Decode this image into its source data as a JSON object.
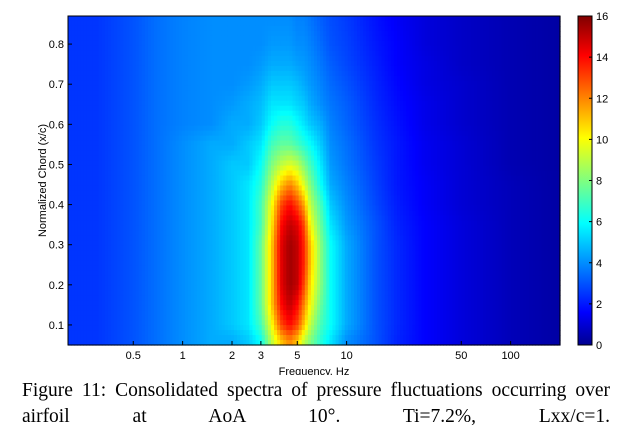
{
  "chart_data": {
    "type": "heatmap",
    "title": "",
    "xlabel": "Frequency, Hz",
    "ylabel": "Normalized Chord (x/c)",
    "x_scale": "log",
    "xlim": [
      0.2,
      200
    ],
    "ylim": [
      0.05,
      0.87
    ],
    "x_ticks": [
      {
        "value": 0.5,
        "label": "0.5"
      },
      {
        "value": 1,
        "label": "1"
      },
      {
        "value": 2,
        "label": "2"
      },
      {
        "value": 3,
        "label": "3"
      },
      {
        "value": 5,
        "label": "5"
      },
      {
        "value": 10,
        "label": "10"
      },
      {
        "value": 50,
        "label": "50"
      },
      {
        "value": 100,
        "label": "100"
      }
    ],
    "y_ticks": [
      {
        "value": 0.1,
        "label": "0.1"
      },
      {
        "value": 0.2,
        "label": "0.2"
      },
      {
        "value": 0.3,
        "label": "0.3"
      },
      {
        "value": 0.4,
        "label": "0.4"
      },
      {
        "value": 0.5,
        "label": "0.5"
      },
      {
        "value": 0.6,
        "label": "0.6"
      },
      {
        "value": 0.7,
        "label": "0.7"
      },
      {
        "value": 0.8,
        "label": "0.8"
      }
    ],
    "colorbar": {
      "range": [
        0,
        16
      ],
      "ticks": [
        {
          "value": 0,
          "label": "0"
        },
        {
          "value": 2,
          "label": "2"
        },
        {
          "value": 4,
          "label": "4"
        },
        {
          "value": 6,
          "label": "6"
        },
        {
          "value": 8,
          "label": "8"
        },
        {
          "value": 10,
          "label": "10"
        },
        {
          "value": 12,
          "label": "12"
        },
        {
          "value": 14,
          "label": "14"
        },
        {
          "value": 16,
          "label": "16"
        }
      ],
      "colors": [
        "#00008f",
        "#0000ff",
        "#00ffff",
        "#ffff00",
        "#ff0000",
        "#800000"
      ]
    },
    "x_bins": [
      0.2,
      0.3,
      0.5,
      0.7,
      1,
      1.5,
      2,
      2.5,
      3,
      3.5,
      4,
      4.5,
      5,
      5.5,
      6,
      7,
      8,
      10,
      15,
      20,
      30,
      50,
      100,
      200
    ],
    "y_bins": [
      0.06,
      0.1,
      0.15,
      0.2,
      0.25,
      0.3,
      0.35,
      0.4,
      0.45,
      0.5,
      0.55,
      0.6,
      0.65,
      0.7,
      0.75,
      0.8,
      0.86
    ],
    "z": [
      [
        2.5,
        2.5,
        3,
        3.5,
        4,
        4.5,
        4.5,
        5,
        6,
        9,
        11,
        12,
        11,
        9,
        8,
        6.5,
        5.5,
        4,
        3,
        2.2,
        1.6,
        1.1,
        0.6,
        0.3
      ],
      [
        2.5,
        2.5,
        3,
        3.5,
        4,
        4.5,
        5,
        5.5,
        7,
        10,
        13,
        14,
        13,
        11,
        9,
        7,
        6,
        4.5,
        3,
        2.3,
        1.6,
        1.1,
        0.6,
        0.3
      ],
      [
        2.5,
        2.5,
        3,
        3.5,
        4,
        4.5,
        5,
        5.5,
        7.5,
        11,
        14,
        15,
        14,
        12,
        10,
        7.5,
        6,
        4.5,
        3,
        2.3,
        1.6,
        1.1,
        0.6,
        0.3
      ],
      [
        2.5,
        2.5,
        3,
        3.5,
        4,
        4.5,
        5,
        5.5,
        7.5,
        11,
        14.5,
        15.5,
        15,
        13,
        10.5,
        8,
        6,
        4.5,
        3,
        2.3,
        1.6,
        1.1,
        0.6,
        0.3
      ],
      [
        2.5,
        2.5,
        3,
        3.5,
        4,
        4.5,
        5,
        5.5,
        7.5,
        11,
        14.5,
        15.5,
        15,
        13.5,
        11,
        8,
        6,
        4.5,
        3,
        2.3,
        1.6,
        1.1,
        0.6,
        0.3
      ],
      [
        2.5,
        2.5,
        3,
        3.5,
        4,
        4.5,
        5,
        5.5,
        7.5,
        11,
        14.5,
        15.5,
        15,
        13.5,
        11,
        8,
        6,
        4.5,
        3,
        2.3,
        1.6,
        1.1,
        0.6,
        0.3
      ],
      [
        2.5,
        2.5,
        3,
        3.5,
        4,
        4.5,
        5,
        5.5,
        7,
        10.5,
        14,
        15,
        14.5,
        13,
        10,
        7.5,
        5.5,
        4.2,
        3,
        2.2,
        1.6,
        1.1,
        0.6,
        0.3
      ],
      [
        2.5,
        2.5,
        3,
        3.5,
        4,
        4.5,
        5,
        5.5,
        7,
        10,
        13,
        14,
        13,
        11.5,
        9,
        7,
        5,
        4,
        2.8,
        2.1,
        1.5,
        1,
        0.6,
        0.3
      ],
      [
        2.5,
        2.5,
        3,
        3.5,
        4,
        4.5,
        5,
        5.5,
        6.5,
        9,
        11,
        12,
        11,
        9.5,
        8,
        6,
        4.5,
        3.8,
        2.7,
        2,
        1.5,
        1,
        0.6,
        0.3
      ],
      [
        2.5,
        2.5,
        3,
        3.5,
        4,
        4.5,
        5,
        5,
        6,
        8,
        9,
        9.5,
        9,
        8,
        7,
        5.5,
        4.2,
        3.6,
        2.6,
        2,
        1.4,
        1,
        0.5,
        0.3
      ],
      [
        2.5,
        2.5,
        3,
        3.5,
        4,
        4.5,
        4.5,
        5,
        5.5,
        7,
        7.5,
        7.5,
        7,
        6.5,
        6,
        5,
        4,
        3.5,
        2.5,
        2,
        1.4,
        1,
        0.5,
        0.3
      ],
      [
        2.5,
        2.5,
        3,
        3.5,
        3.8,
        4,
        4.5,
        4.5,
        5,
        6,
        6.5,
        6.5,
        6,
        5.5,
        5,
        4.5,
        3.8,
        3.3,
        2.4,
        1.9,
        1.3,
        0.9,
        0.5,
        0.3
      ],
      [
        2.5,
        2.5,
        3,
        3.5,
        3.8,
        4,
        4.2,
        4.5,
        4.8,
        5.5,
        5.5,
        5.5,
        5.2,
        5,
        4.5,
        4,
        3.6,
        3.2,
        2.3,
        1.8,
        1.3,
        0.9,
        0.5,
        0.3
      ],
      [
        2.5,
        2.5,
        3,
        3.5,
        3.8,
        4,
        4,
        4.2,
        4.5,
        5,
        5,
        5,
        4.8,
        4.5,
        4.2,
        3.8,
        3.4,
        3,
        2.2,
        1.7,
        1.2,
        0.9,
        0.5,
        0.3
      ],
      [
        2.5,
        2.5,
        3,
        3.5,
        3.8,
        4,
        4,
        4,
        4.2,
        4.5,
        4.5,
        4.5,
        4.3,
        4.2,
        4,
        3.6,
        3.2,
        2.8,
        2.1,
        1.6,
        1.2,
        0.8,
        0.5,
        0.3
      ],
      [
        2.5,
        2.5,
        3,
        3.5,
        3.8,
        4,
        4,
        4,
        4,
        4.2,
        4.2,
        4.2,
        4,
        4,
        3.8,
        3.4,
        3,
        2.7,
        2,
        1.6,
        1.1,
        0.8,
        0.5,
        0.3
      ],
      [
        2.5,
        2.5,
        3,
        3.5,
        3.8,
        4,
        4,
        4,
        4,
        4,
        4,
        4,
        3.8,
        3.8,
        3.6,
        3.2,
        2.9,
        2.6,
        1.9,
        1.5,
        1.1,
        0.8,
        0.5,
        0.3
      ]
    ]
  },
  "caption": "Figure 11: Consolidated spectra of pressure fluctuations occurring over airfoil at AoA 10°. Ti=7.2%, Lxx/c=1."
}
